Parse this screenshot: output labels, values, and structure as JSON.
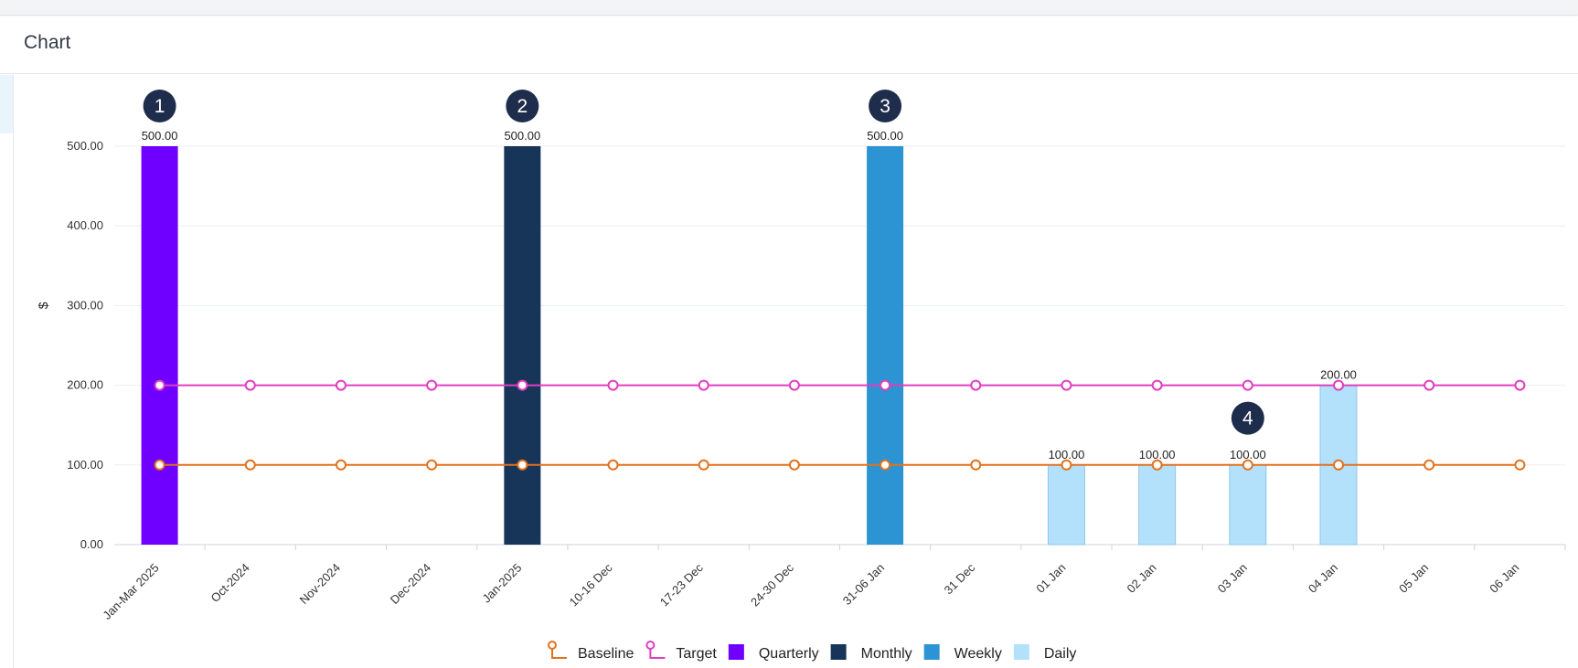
{
  "panel": {
    "title": "Chart"
  },
  "chart_data": {
    "type": "bar",
    "title": "",
    "xlabel": "",
    "ylabel": "$",
    "ylim": [
      0,
      500
    ],
    "yticks": [
      "0.00",
      "100.00",
      "200.00",
      "300.00",
      "400.00",
      "500.00"
    ],
    "categories": [
      "Jan-Mar 2025",
      "Oct-2024",
      "Nov-2024",
      "Dec-2024",
      "Jan-2025",
      "10-16 Dec",
      "17-23 Dec",
      "24-30 Dec",
      "31-06 Jan",
      "31 Dec",
      "01 Jan",
      "02 Jan",
      "03 Jan",
      "04 Jan",
      "05 Jan",
      "06 Jan"
    ],
    "series": [
      {
        "name": "Quarterly",
        "kind": "bar",
        "color": "#6f00ff",
        "values": [
          500,
          null,
          null,
          null,
          null,
          null,
          null,
          null,
          null,
          null,
          null,
          null,
          null,
          null,
          null,
          null
        ]
      },
      {
        "name": "Monthly",
        "kind": "bar",
        "color": "#173559",
        "values": [
          null,
          null,
          null,
          null,
          500,
          null,
          null,
          null,
          null,
          null,
          null,
          null,
          null,
          null,
          null,
          null
        ]
      },
      {
        "name": "Weekly",
        "kind": "bar",
        "color": "#2c94d2",
        "values": [
          null,
          null,
          null,
          null,
          null,
          null,
          null,
          null,
          500,
          null,
          null,
          null,
          null,
          null,
          null,
          null
        ]
      },
      {
        "name": "Daily",
        "kind": "bar",
        "color": "#b3e0fb",
        "values": [
          null,
          null,
          null,
          null,
          null,
          null,
          null,
          null,
          null,
          null,
          100,
          100,
          100,
          200,
          null,
          null
        ]
      },
      {
        "name": "Baseline",
        "kind": "line",
        "color": "#e2711d",
        "values": [
          100,
          100,
          100,
          100,
          100,
          100,
          100,
          100,
          100,
          100,
          100,
          100,
          100,
          100,
          100,
          100
        ]
      },
      {
        "name": "Target",
        "kind": "line",
        "color": "#e03fbf",
        "values": [
          200,
          200,
          200,
          200,
          200,
          200,
          200,
          200,
          200,
          200,
          200,
          200,
          200,
          200,
          200,
          200
        ]
      }
    ],
    "data_labels": [
      {
        "category": "Jan-Mar 2025",
        "text": "500.00"
      },
      {
        "category": "Jan-2025",
        "text": "500.00"
      },
      {
        "category": "31-06 Jan",
        "text": "500.00"
      },
      {
        "category": "01 Jan",
        "text": "100.00"
      },
      {
        "category": "02 Jan",
        "text": "100.00"
      },
      {
        "category": "03 Jan",
        "text": "100.00"
      },
      {
        "category": "04 Jan",
        "text": "200.00"
      }
    ],
    "legend": {
      "placement": "bottom-center",
      "entries": [
        {
          "name": "Baseline",
          "symbol": "line",
          "color": "#e2711d"
        },
        {
          "name": "Target",
          "symbol": "line",
          "color": "#e03fbf"
        },
        {
          "name": "Quarterly",
          "symbol": "box",
          "color": "#6f00ff"
        },
        {
          "name": "Monthly",
          "symbol": "box",
          "color": "#173559"
        },
        {
          "name": "Weekly",
          "symbol": "box",
          "color": "#2c94d2"
        },
        {
          "name": "Daily",
          "symbol": "box",
          "color": "#b3e0fb"
        }
      ]
    },
    "annotations": [
      {
        "text": "1",
        "category": "Jan-Mar 2025"
      },
      {
        "text": "2",
        "category": "Jan-2025"
      },
      {
        "text": "3",
        "category": "31-06 Jan"
      },
      {
        "text": "4",
        "category": "03 Jan"
      }
    ],
    "annotation_color": "#1f2d4d"
  }
}
